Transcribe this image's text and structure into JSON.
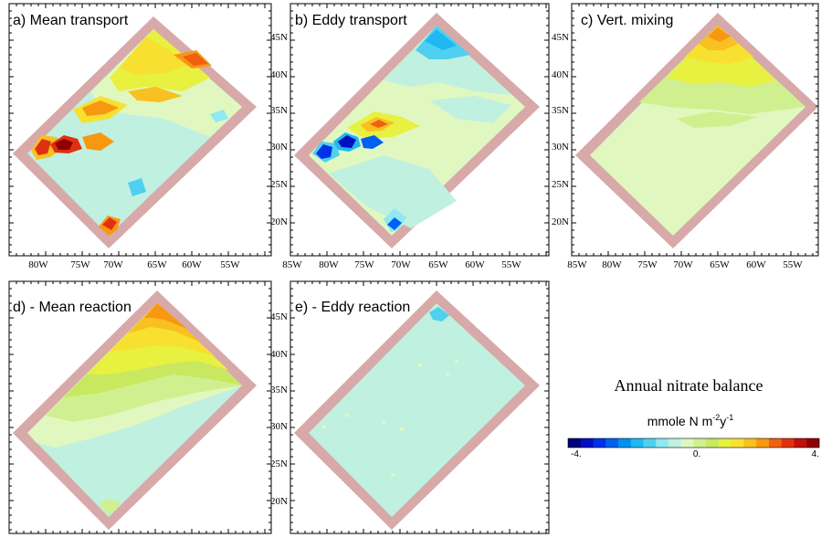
{
  "panels": [
    {
      "label": "a) Mean  transport",
      "id": "a",
      "lat_labels": false,
      "lon_labels": true
    },
    {
      "label": "b) Eddy transport",
      "id": "b",
      "lat_labels": true,
      "lon_labels": true
    },
    {
      "label": "c) Vert. mixing",
      "id": "c",
      "lat_labels": true,
      "lon_labels": true
    },
    {
      "label": "d) - Mean reaction",
      "id": "d",
      "lat_labels": false,
      "lon_labels": false
    },
    {
      "label": "e) - Eddy reaction",
      "id": "e",
      "lat_labels": true,
      "lon_labels": false
    }
  ],
  "lat_ticks": [
    "45N",
    "40N",
    "35N",
    "30N",
    "25N",
    "20N"
  ],
  "lon_ticks_a": [
    "80W",
    "75W",
    "70W",
    "65W",
    "60W",
    "55W"
  ],
  "lon_ticks_bc": [
    "85W",
    "80W",
    "75W",
    "70W",
    "65W",
    "60W",
    "55W"
  ],
  "legend": {
    "title": "Annual nitrate balance",
    "units_base": "mmole N m",
    "units_exp1": "-2",
    "units_mid": "y",
    "units_exp2": "-1",
    "tick_min": "-4.",
    "tick_mid": "0.",
    "tick_max": "4.",
    "min": -4,
    "max": 4,
    "colors": [
      "#00007a",
      "#0010c0",
      "#0030e8",
      "#0060f0",
      "#0090f0",
      "#20b8f0",
      "#50d0f0",
      "#90e8f0",
      "#c0f0e0",
      "#e0f8c0",
      "#d0f090",
      "#c8e860",
      "#e8f040",
      "#f8e030",
      "#f8c020",
      "#f89810",
      "#f06010",
      "#e03010",
      "#c01008",
      "#900000"
    ]
  },
  "colors": {
    "frame": "#d8a9a9",
    "frame_inner": "#f8f0f0",
    "neutral_green": "#e0f8c0",
    "neutral_cyan": "#c0f0e0"
  }
}
